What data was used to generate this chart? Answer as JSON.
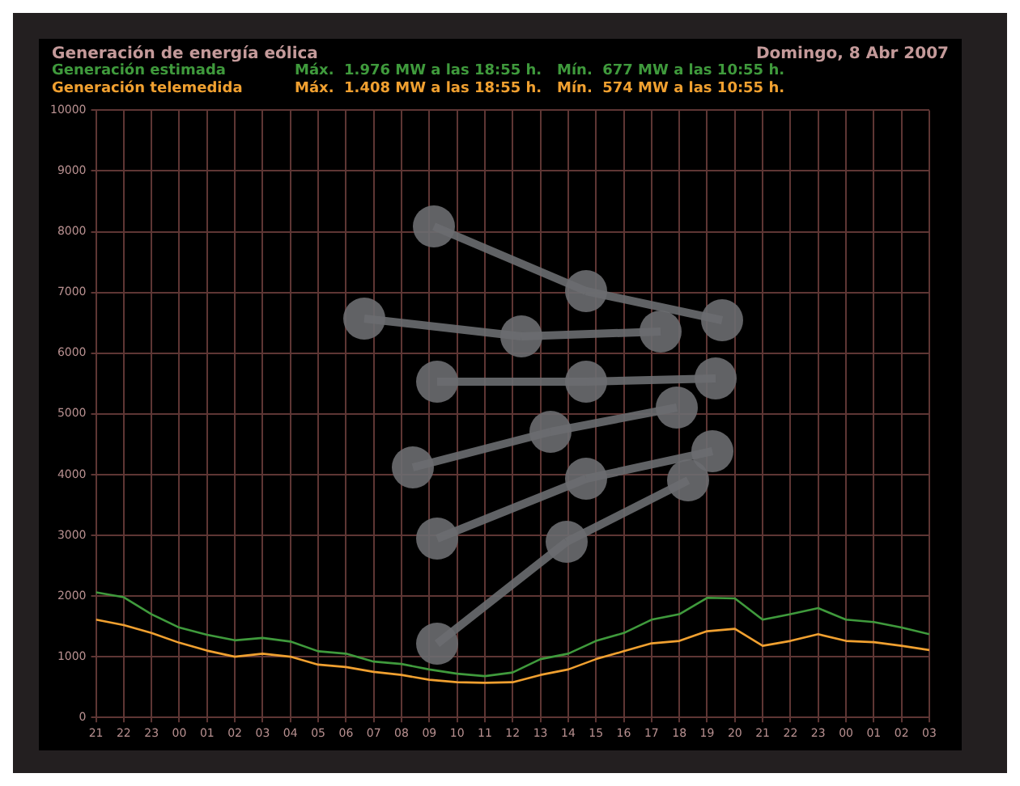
{
  "chart_data": {
    "type": "line",
    "title": "Generación de energía eólica",
    "subtitle": "Domingo, 8 Abr 2007",
    "x": [
      "2007-04-07T21:00",
      "2007-04-07T22:00",
      "2007-04-07T23:00",
      "2007-04-08T00:00",
      "2007-04-08T01:00",
      "2007-04-08T02:00",
      "2007-04-08T03:00",
      "2007-04-08T04:00",
      "2007-04-08T05:00",
      "2007-04-08T06:00",
      "2007-04-08T07:00",
      "2007-04-08T08:00",
      "2007-04-08T09:00",
      "2007-04-08T10:00",
      "2007-04-08T11:00",
      "2007-04-08T12:00",
      "2007-04-08T13:00",
      "2007-04-08T14:00",
      "2007-04-08T15:00",
      "2007-04-08T16:00",
      "2007-04-08T17:00",
      "2007-04-08T18:00",
      "2007-04-08T19:00",
      "2007-04-08T20:00",
      "2007-04-08T21:00",
      "2007-04-08T22:00",
      "2007-04-08T23:00",
      "2007-04-09T00:00",
      "2007-04-09T01:00",
      "2007-04-09T02:00",
      "2007-04-09T03:00"
    ],
    "series": [
      {
        "name": "Generación estimada",
        "color": "#3f9a3c",
        "values": [
          2060,
          1980,
          1700,
          1480,
          1360,
          1270,
          1310,
          1250,
          1090,
          1050,
          920,
          880,
          790,
          720,
          680,
          740,
          960,
          1050,
          1260,
          1390,
          1610,
          1700,
          1970,
          1960,
          1610,
          1700,
          1800,
          1610,
          1570,
          1480,
          1370
        ]
      },
      {
        "name": "Generación telemedida",
        "color": "#f0a030",
        "values": [
          1610,
          1520,
          1390,
          1230,
          1100,
          1000,
          1050,
          1000,
          870,
          830,
          750,
          700,
          620,
          580,
          570,
          580,
          700,
          790,
          960,
          1090,
          1220,
          1260,
          1420,
          1460,
          1180,
          1260,
          1370,
          1260,
          1240,
          1180,
          1110
        ]
      }
    ],
    "annotations": [
      "Máx.  1.976 MW a las 18:55 h.   Mín.  677 MW a las 10:55 h.",
      "Máx.  1.408 MW a las 18:55 h.   Mín.  574 MW a las 10:55 h."
    ],
    "xlim": [
      "2007-04-07T21:00",
      "2007-04-09T03:00"
    ],
    "xticks": [
      {
        "value": "2007-04-07T21:00",
        "label": "21"
      },
      {
        "value": "2007-04-07T22:00",
        "label": "22"
      },
      {
        "value": "2007-04-07T23:00",
        "label": "23"
      },
      {
        "value": "2007-04-08T00:00",
        "label": "00"
      },
      {
        "value": "2007-04-08T01:00",
        "label": "01"
      },
      {
        "value": "2007-04-08T02:00",
        "label": "02"
      },
      {
        "value": "2007-04-08T03:00",
        "label": "03"
      },
      {
        "value": "2007-04-08T04:00",
        "label": "04"
      },
      {
        "value": "2007-04-08T05:00",
        "label": "05"
      },
      {
        "value": "2007-04-08T06:00",
        "label": "06"
      },
      {
        "value": "2007-04-08T07:00",
        "label": "07"
      },
      {
        "value": "2007-04-08T08:00",
        "label": "08"
      },
      {
        "value": "2007-04-08T09:00",
        "label": "09"
      },
      {
        "value": "2007-04-08T10:00",
        "label": "10"
      },
      {
        "value": "2007-04-08T11:00",
        "label": "11"
      },
      {
        "value": "2007-04-08T12:00",
        "label": "12"
      },
      {
        "value": "2007-04-08T13:00",
        "label": "13"
      },
      {
        "value": "2007-04-08T14:00",
        "label": "14"
      },
      {
        "value": "2007-04-08T15:00",
        "label": "15"
      },
      {
        "value": "2007-04-08T16:00",
        "label": "16"
      },
      {
        "value": "2007-04-08T17:00",
        "label": "17"
      },
      {
        "value": "2007-04-08T18:00",
        "label": "18"
      },
      {
        "value": "2007-04-08T19:00",
        "label": "19"
      },
      {
        "value": "2007-04-08T20:00",
        "label": "20"
      },
      {
        "value": "2007-04-08T21:00",
        "label": "21"
      },
      {
        "value": "2007-04-08T22:00",
        "label": "22"
      },
      {
        "value": "2007-04-08T23:00",
        "label": "23"
      },
      {
        "value": "2007-04-09T00:00",
        "label": "00"
      },
      {
        "value": "2007-04-09T01:00",
        "label": "01"
      },
      {
        "value": "2007-04-09T02:00",
        "label": "02"
      },
      {
        "value": "2007-04-09T03:00",
        "label": "03"
      }
    ],
    "ylim": [
      0,
      10000
    ],
    "yticks": [
      0,
      1000,
      2000,
      3000,
      4000,
      5000,
      6000,
      7000,
      8000,
      9000,
      10000
    ],
    "grid": true,
    "legend": "top left",
    "marker": "none",
    "line_style": "solid"
  }
}
